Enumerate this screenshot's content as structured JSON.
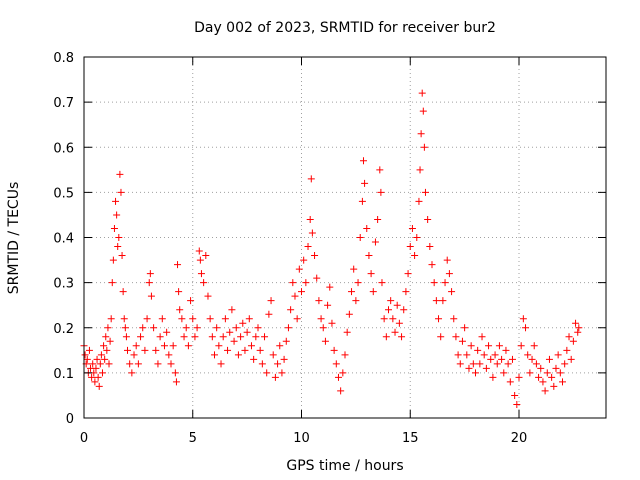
{
  "chart_data": {
    "type": "scatter",
    "title": "Day 002 of 2023, SRMTID for receiver bur2",
    "xlabel": "GPS time / hours",
    "ylabel": "SRMTID / TECUs",
    "xlim": [
      0,
      24
    ],
    "ylim": [
      0,
      0.8
    ],
    "xticks": [
      0,
      5,
      10,
      15,
      20
    ],
    "xtick_labels": [
      "0",
      "5",
      "10",
      "15",
      "20"
    ],
    "yticks": [
      0,
      0.1,
      0.2,
      0.3,
      0.4,
      0.5,
      0.6,
      0.7,
      0.8
    ],
    "ytick_labels": [
      "0",
      "0.1",
      "0.2",
      "0.3",
      "0.4",
      "0.5",
      "0.6",
      "0.7",
      "0.8"
    ],
    "grid": true,
    "marker": "+",
    "marker_color": "#ff0000",
    "series": [
      {
        "name": "SRMTID",
        "points": [
          [
            0.0,
            0.16
          ],
          [
            0.05,
            0.14
          ],
          [
            0.1,
            0.12
          ],
          [
            0.15,
            0.13
          ],
          [
            0.2,
            0.1
          ],
          [
            0.25,
            0.15
          ],
          [
            0.3,
            0.11
          ],
          [
            0.35,
            0.09
          ],
          [
            0.4,
            0.12
          ],
          [
            0.45,
            0.1
          ],
          [
            0.5,
            0.08
          ],
          [
            0.55,
            0.11
          ],
          [
            0.6,
            0.13
          ],
          [
            0.65,
            0.09
          ],
          [
            0.7,
            0.07
          ],
          [
            0.75,
            0.12
          ],
          [
            0.8,
            0.14
          ],
          [
            0.85,
            0.1
          ],
          [
            0.9,
            0.16
          ],
          [
            0.95,
            0.13
          ],
          [
            1.0,
            0.18
          ],
          [
            1.05,
            0.15
          ],
          [
            1.1,
            0.2
          ],
          [
            1.15,
            0.12
          ],
          [
            1.2,
            0.17
          ],
          [
            1.25,
            0.22
          ],
          [
            1.3,
            0.3
          ],
          [
            1.35,
            0.35
          ],
          [
            1.4,
            0.42
          ],
          [
            1.45,
            0.48
          ],
          [
            1.5,
            0.45
          ],
          [
            1.55,
            0.38
          ],
          [
            1.6,
            0.4
          ],
          [
            1.65,
            0.54
          ],
          [
            1.7,
            0.5
          ],
          [
            1.75,
            0.36
          ],
          [
            1.8,
            0.28
          ],
          [
            1.85,
            0.22
          ],
          [
            1.9,
            0.2
          ],
          [
            1.95,
            0.18
          ],
          [
            2.0,
            0.15
          ],
          [
            2.1,
            0.12
          ],
          [
            2.2,
            0.1
          ],
          [
            2.3,
            0.14
          ],
          [
            2.4,
            0.16
          ],
          [
            2.5,
            0.12
          ],
          [
            2.6,
            0.18
          ],
          [
            2.7,
            0.2
          ],
          [
            2.8,
            0.15
          ],
          [
            2.9,
            0.22
          ],
          [
            3.0,
            0.3
          ],
          [
            3.05,
            0.32
          ],
          [
            3.1,
            0.27
          ],
          [
            3.2,
            0.2
          ],
          [
            3.3,
            0.15
          ],
          [
            3.4,
            0.12
          ],
          [
            3.5,
            0.18
          ],
          [
            3.6,
            0.22
          ],
          [
            3.7,
            0.16
          ],
          [
            3.8,
            0.19
          ],
          [
            3.9,
            0.14
          ],
          [
            4.0,
            0.12
          ],
          [
            4.1,
            0.16
          ],
          [
            4.2,
            0.1
          ],
          [
            4.25,
            0.08
          ],
          [
            4.3,
            0.34
          ],
          [
            4.35,
            0.28
          ],
          [
            4.4,
            0.24
          ],
          [
            4.5,
            0.22
          ],
          [
            4.6,
            0.18
          ],
          [
            4.7,
            0.2
          ],
          [
            4.8,
            0.16
          ],
          [
            4.9,
            0.26
          ],
          [
            5.0,
            0.22
          ],
          [
            5.1,
            0.18
          ],
          [
            5.2,
            0.2
          ],
          [
            5.3,
            0.37
          ],
          [
            5.35,
            0.35
          ],
          [
            5.4,
            0.32
          ],
          [
            5.5,
            0.3
          ],
          [
            5.6,
            0.36
          ],
          [
            5.7,
            0.27
          ],
          [
            5.8,
            0.22
          ],
          [
            5.9,
            0.18
          ],
          [
            6.0,
            0.14
          ],
          [
            6.1,
            0.2
          ],
          [
            6.2,
            0.16
          ],
          [
            6.3,
            0.12
          ],
          [
            6.4,
            0.18
          ],
          [
            6.5,
            0.22
          ],
          [
            6.6,
            0.15
          ],
          [
            6.7,
            0.19
          ],
          [
            6.8,
            0.24
          ],
          [
            6.9,
            0.17
          ],
          [
            7.0,
            0.2
          ],
          [
            7.1,
            0.14
          ],
          [
            7.2,
            0.18
          ],
          [
            7.3,
            0.21
          ],
          [
            7.4,
            0.15
          ],
          [
            7.5,
            0.19
          ],
          [
            7.6,
            0.22
          ],
          [
            7.7,
            0.16
          ],
          [
            7.8,
            0.13
          ],
          [
            7.9,
            0.18
          ],
          [
            8.0,
            0.2
          ],
          [
            8.1,
            0.15
          ],
          [
            8.2,
            0.12
          ],
          [
            8.3,
            0.18
          ],
          [
            8.4,
            0.1
          ],
          [
            8.5,
            0.23
          ],
          [
            8.6,
            0.26
          ],
          [
            8.7,
            0.14
          ],
          [
            8.8,
            0.09
          ],
          [
            8.9,
            0.12
          ],
          [
            9.0,
            0.16
          ],
          [
            9.1,
            0.1
          ],
          [
            9.2,
            0.13
          ],
          [
            9.3,
            0.17
          ],
          [
            9.4,
            0.2
          ],
          [
            9.5,
            0.24
          ],
          [
            9.6,
            0.3
          ],
          [
            9.7,
            0.27
          ],
          [
            9.8,
            0.22
          ],
          [
            9.9,
            0.33
          ],
          [
            10.0,
            0.28
          ],
          [
            10.1,
            0.35
          ],
          [
            10.2,
            0.3
          ],
          [
            10.3,
            0.38
          ],
          [
            10.4,
            0.44
          ],
          [
            10.45,
            0.53
          ],
          [
            10.5,
            0.41
          ],
          [
            10.6,
            0.36
          ],
          [
            10.7,
            0.31
          ],
          [
            10.8,
            0.26
          ],
          [
            10.9,
            0.22
          ],
          [
            11.0,
            0.2
          ],
          [
            11.1,
            0.17
          ],
          [
            11.2,
            0.25
          ],
          [
            11.3,
            0.29
          ],
          [
            11.4,
            0.21
          ],
          [
            11.5,
            0.15
          ],
          [
            11.6,
            0.12
          ],
          [
            11.7,
            0.09
          ],
          [
            11.8,
            0.06
          ],
          [
            11.9,
            0.1
          ],
          [
            12.0,
            0.14
          ],
          [
            12.1,
            0.19
          ],
          [
            12.2,
            0.23
          ],
          [
            12.3,
            0.28
          ],
          [
            12.4,
            0.33
          ],
          [
            12.5,
            0.26
          ],
          [
            12.6,
            0.3
          ],
          [
            12.7,
            0.4
          ],
          [
            12.8,
            0.48
          ],
          [
            12.85,
            0.57
          ],
          [
            12.9,
            0.52
          ],
          [
            13.0,
            0.42
          ],
          [
            13.1,
            0.36
          ],
          [
            13.2,
            0.32
          ],
          [
            13.3,
            0.28
          ],
          [
            13.4,
            0.39
          ],
          [
            13.5,
            0.44
          ],
          [
            13.6,
            0.55
          ],
          [
            13.65,
            0.5
          ],
          [
            13.7,
            0.3
          ],
          [
            13.8,
            0.22
          ],
          [
            13.9,
            0.18
          ],
          [
            14.0,
            0.24
          ],
          [
            14.1,
            0.26
          ],
          [
            14.2,
            0.22
          ],
          [
            14.3,
            0.19
          ],
          [
            14.4,
            0.25
          ],
          [
            14.5,
            0.21
          ],
          [
            14.6,
            0.18
          ],
          [
            14.7,
            0.24
          ],
          [
            14.8,
            0.28
          ],
          [
            14.9,
            0.32
          ],
          [
            15.0,
            0.38
          ],
          [
            15.1,
            0.42
          ],
          [
            15.2,
            0.36
          ],
          [
            15.3,
            0.4
          ],
          [
            15.4,
            0.48
          ],
          [
            15.45,
            0.55
          ],
          [
            15.5,
            0.63
          ],
          [
            15.55,
            0.72
          ],
          [
            15.6,
            0.68
          ],
          [
            15.65,
            0.6
          ],
          [
            15.7,
            0.5
          ],
          [
            15.8,
            0.44
          ],
          [
            15.9,
            0.38
          ],
          [
            16.0,
            0.34
          ],
          [
            16.1,
            0.3
          ],
          [
            16.2,
            0.26
          ],
          [
            16.3,
            0.22
          ],
          [
            16.4,
            0.18
          ],
          [
            16.5,
            0.26
          ],
          [
            16.6,
            0.3
          ],
          [
            16.7,
            0.35
          ],
          [
            16.8,
            0.32
          ],
          [
            16.9,
            0.28
          ],
          [
            17.0,
            0.22
          ],
          [
            17.1,
            0.18
          ],
          [
            17.2,
            0.14
          ],
          [
            17.3,
            0.12
          ],
          [
            17.4,
            0.17
          ],
          [
            17.5,
            0.2
          ],
          [
            17.6,
            0.14
          ],
          [
            17.7,
            0.11
          ],
          [
            17.8,
            0.16
          ],
          [
            17.9,
            0.12
          ],
          [
            18.0,
            0.1
          ],
          [
            18.1,
            0.15
          ],
          [
            18.2,
            0.12
          ],
          [
            18.3,
            0.18
          ],
          [
            18.4,
            0.14
          ],
          [
            18.5,
            0.11
          ],
          [
            18.6,
            0.16
          ],
          [
            18.7,
            0.13
          ],
          [
            18.8,
            0.09
          ],
          [
            18.9,
            0.14
          ],
          [
            19.0,
            0.12
          ],
          [
            19.1,
            0.16
          ],
          [
            19.2,
            0.13
          ],
          [
            19.3,
            0.1
          ],
          [
            19.4,
            0.15
          ],
          [
            19.5,
            0.12
          ],
          [
            19.6,
            0.08
          ],
          [
            19.7,
            0.13
          ],
          [
            19.8,
            0.05
          ],
          [
            19.9,
            0.03
          ],
          [
            20.0,
            0.09
          ],
          [
            20.1,
            0.16
          ],
          [
            20.2,
            0.22
          ],
          [
            20.3,
            0.2
          ],
          [
            20.4,
            0.14
          ],
          [
            20.5,
            0.1
          ],
          [
            20.6,
            0.13
          ],
          [
            20.7,
            0.16
          ],
          [
            20.8,
            0.12
          ],
          [
            20.9,
            0.09
          ],
          [
            21.0,
            0.11
          ],
          [
            21.1,
            0.08
          ],
          [
            21.2,
            0.06
          ],
          [
            21.3,
            0.1
          ],
          [
            21.4,
            0.13
          ],
          [
            21.5,
            0.09
          ],
          [
            21.6,
            0.07
          ],
          [
            21.7,
            0.11
          ],
          [
            21.8,
            0.14
          ],
          [
            21.9,
            0.1
          ],
          [
            22.0,
            0.08
          ],
          [
            22.1,
            0.12
          ],
          [
            22.2,
            0.15
          ],
          [
            22.3,
            0.18
          ],
          [
            22.4,
            0.13
          ],
          [
            22.5,
            0.17
          ],
          [
            22.6,
            0.21
          ],
          [
            22.7,
            0.19
          ],
          [
            22.75,
            0.2
          ]
        ]
      }
    ]
  }
}
